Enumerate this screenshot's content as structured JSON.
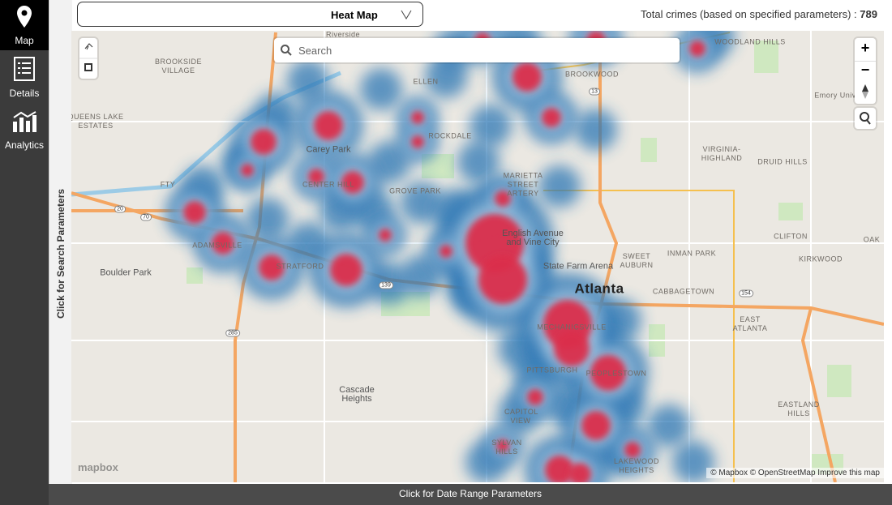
{
  "sidebar": {
    "items": [
      {
        "label": "Map"
      },
      {
        "label": "Details"
      },
      {
        "label": "Analytics"
      }
    ]
  },
  "search_panel_toggle": "Click for Search Parameters",
  "date_panel_toggle": "Click for Date Range Parameters",
  "view_selector": {
    "label": "Heat Map"
  },
  "total": {
    "label": "Total crimes (based on specified parameters) :",
    "value": 789
  },
  "map": {
    "search_placeholder": "Search",
    "zoom_in": "+",
    "zoom_out": "−",
    "logo": "mapbox",
    "attribution": [
      "© Mapbox",
      "© OpenStreetMap",
      "Improve this map"
    ],
    "labels": [
      "Riverside",
      "WOODLAND HILLS",
      "BROOKSIDE VILLAGE",
      "ELLEN",
      "BROOKWOOD",
      "Emory Univ",
      "QUEENS LAKE ESTATES",
      "ROCKDALE",
      "Carey Park",
      "VIRGINIA-HIGHLAND",
      "FTY",
      "CENTER HILL",
      "GROVE PARK",
      "MARIETTA STREET ARTERY",
      "DRUID HILLS",
      "English Avenue and Vine City",
      "CLIFTON",
      "OAK",
      "ADAMSVILLE",
      "STRATFORD",
      "State Farm Arena",
      "SWEET AUBURN",
      "INMAN PARK",
      "KIRKWOOD",
      "Boulder Park",
      "Atlanta",
      "CABBAGETOWN",
      "EAST ATLANTA",
      "MECHANICSVILLE",
      "PITTSBURGH",
      "PEOPLESTOWN",
      "Cascade Heights",
      "EASTLAND HILLS",
      "CAPITOL VIEW",
      "SYLVAN HILLS",
      "LAKEWOOD HEIGHTS"
    ],
    "shields": [
      "20",
      "70",
      "285",
      "139",
      "13",
      "154"
    ]
  }
}
